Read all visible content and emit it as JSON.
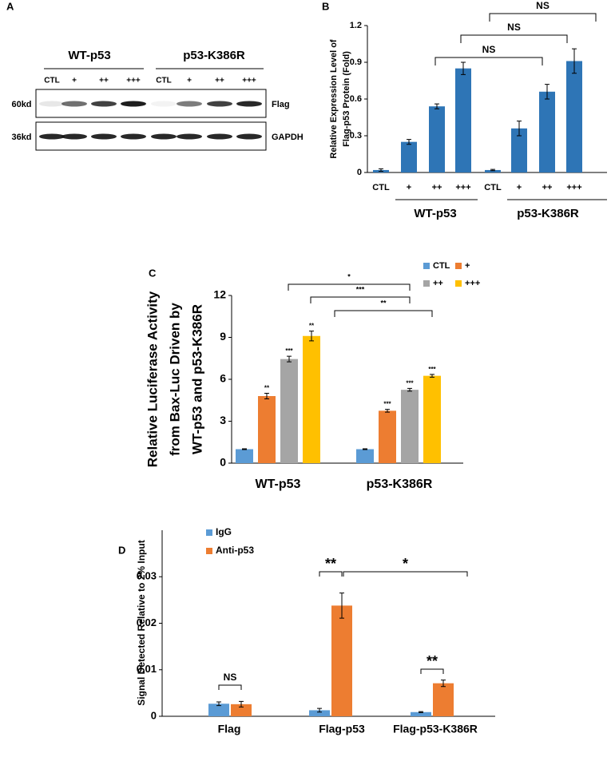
{
  "blot": {
    "label": "A",
    "groups": [
      "WT-p53",
      "p53-K386R"
    ],
    "lanes": [
      "CTL",
      "+",
      "++",
      "+++",
      "CTL",
      "+",
      "++",
      "+++"
    ],
    "rows": [
      {
        "size": "60kd",
        "name": "Flag"
      },
      {
        "size": "36kd",
        "name": "GAPDH"
      }
    ]
  },
  "chart_data": [
    {
      "type": "bar",
      "label": "B",
      "ylabel": [
        "Relative Expression Level of",
        "Flag-p53 Protein (Fold)"
      ],
      "categories": [
        "CTL",
        "+",
        "++",
        "+++",
        "CTL",
        "+",
        "++",
        "+++"
      ],
      "groups": [
        "WT-p53",
        "p53-K386R"
      ],
      "values": [
        0.02,
        0.25,
        0.54,
        0.85,
        0.02,
        0.36,
        0.66,
        0.91
      ],
      "errors": [
        0.01,
        0.02,
        0.02,
        0.05,
        0.005,
        0.06,
        0.06,
        0.1
      ],
      "color": "#2e75b6",
      "ylim": [
        0,
        1.2
      ],
      "yticks": [
        0,
        0.3,
        0.6,
        0.9,
        1.2
      ],
      "annotations": [
        "NS",
        "NS",
        "NS"
      ]
    },
    {
      "type": "bar",
      "label": "C",
      "ylabel": [
        "Relative Luciferase Activity",
        "from Bax-Luc Driven by",
        "WT-p53 and p53-K386R"
      ],
      "categories": [
        "WT-p53",
        "p53-K386R"
      ],
      "series": [
        {
          "name": "CTL",
          "color": "#5b9bd5",
          "values": [
            1,
            1
          ],
          "errors": [
            0.03,
            0.03
          ]
        },
        {
          "name": "+",
          "color": "#ed7d31",
          "values": [
            4.8,
            3.75
          ],
          "errors": [
            0.2,
            0.1
          ],
          "significance": [
            "**",
            "***"
          ]
        },
        {
          "name": "++",
          "color": "#a5a5a5",
          "values": [
            7.45,
            5.25
          ],
          "errors": [
            0.2,
            0.1
          ],
          "significance": [
            "***",
            "***"
          ]
        },
        {
          "name": "+++",
          "color": "#ffc000",
          "values": [
            9.1,
            6.25
          ],
          "errors": [
            0.35,
            0.1
          ],
          "significance": [
            "**",
            "***"
          ]
        }
      ],
      "ylim": [
        0,
        12
      ],
      "yticks": [
        0,
        3,
        6,
        9,
        12
      ],
      "annotations": [
        "*",
        "***",
        "**"
      ]
    },
    {
      "type": "bar",
      "label": "D",
      "ylabel": [
        "Signal Detected Relative to 2% Input"
      ],
      "categories": [
        "Flag",
        "Flag-p53",
        "Flag-p53-K386R"
      ],
      "series": [
        {
          "name": "IgG",
          "color": "#5b9bd5",
          "values": [
            0.0027,
            0.0013,
            0.0009
          ],
          "errors": [
            0.0004,
            0.0004,
            0.0001
          ]
        },
        {
          "name": "Anti-p53",
          "color": "#ed7d31",
          "values": [
            0.0026,
            0.0238,
            0.0071
          ],
          "errors": [
            0.0006,
            0.0027,
            0.0007
          ]
        }
      ],
      "ylim": [
        0,
        0.04
      ],
      "yticks": [
        0,
        0.01,
        0.02,
        0.03
      ],
      "annotations": [
        "NS",
        "**",
        "*",
        "**"
      ]
    }
  ]
}
